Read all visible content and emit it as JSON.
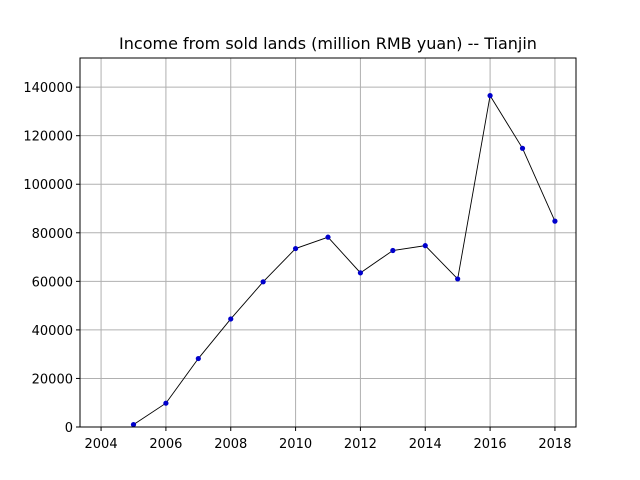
{
  "chart_data": {
    "type": "line",
    "title": "Income from sold lands (million RMB yuan) -- Tianjin",
    "xlabel": "",
    "ylabel": "",
    "x": [
      2005,
      2006,
      2007,
      2008,
      2009,
      2010,
      2011,
      2012,
      2013,
      2014,
      2015,
      2016,
      2017,
      2018
    ],
    "series": [
      {
        "values": [
          1000,
          9800,
          28200,
          44500,
          59800,
          73500,
          78200,
          63500,
          72700,
          74700,
          61000,
          136500,
          114800,
          84800
        ]
      }
    ],
    "xlim": [
      2003.35,
      2018.65
    ],
    "ylim": [
      0,
      152000
    ],
    "xticks": [
      "2004",
      "2006",
      "2008",
      "2010",
      "2012",
      "2014",
      "2016",
      "2018"
    ],
    "yticks": [
      "0",
      "20000",
      "40000",
      "60000",
      "80000",
      "100000",
      "120000",
      "140000"
    ],
    "grid": true,
    "line_color": "#000000",
    "marker_color": "#0000cc"
  }
}
